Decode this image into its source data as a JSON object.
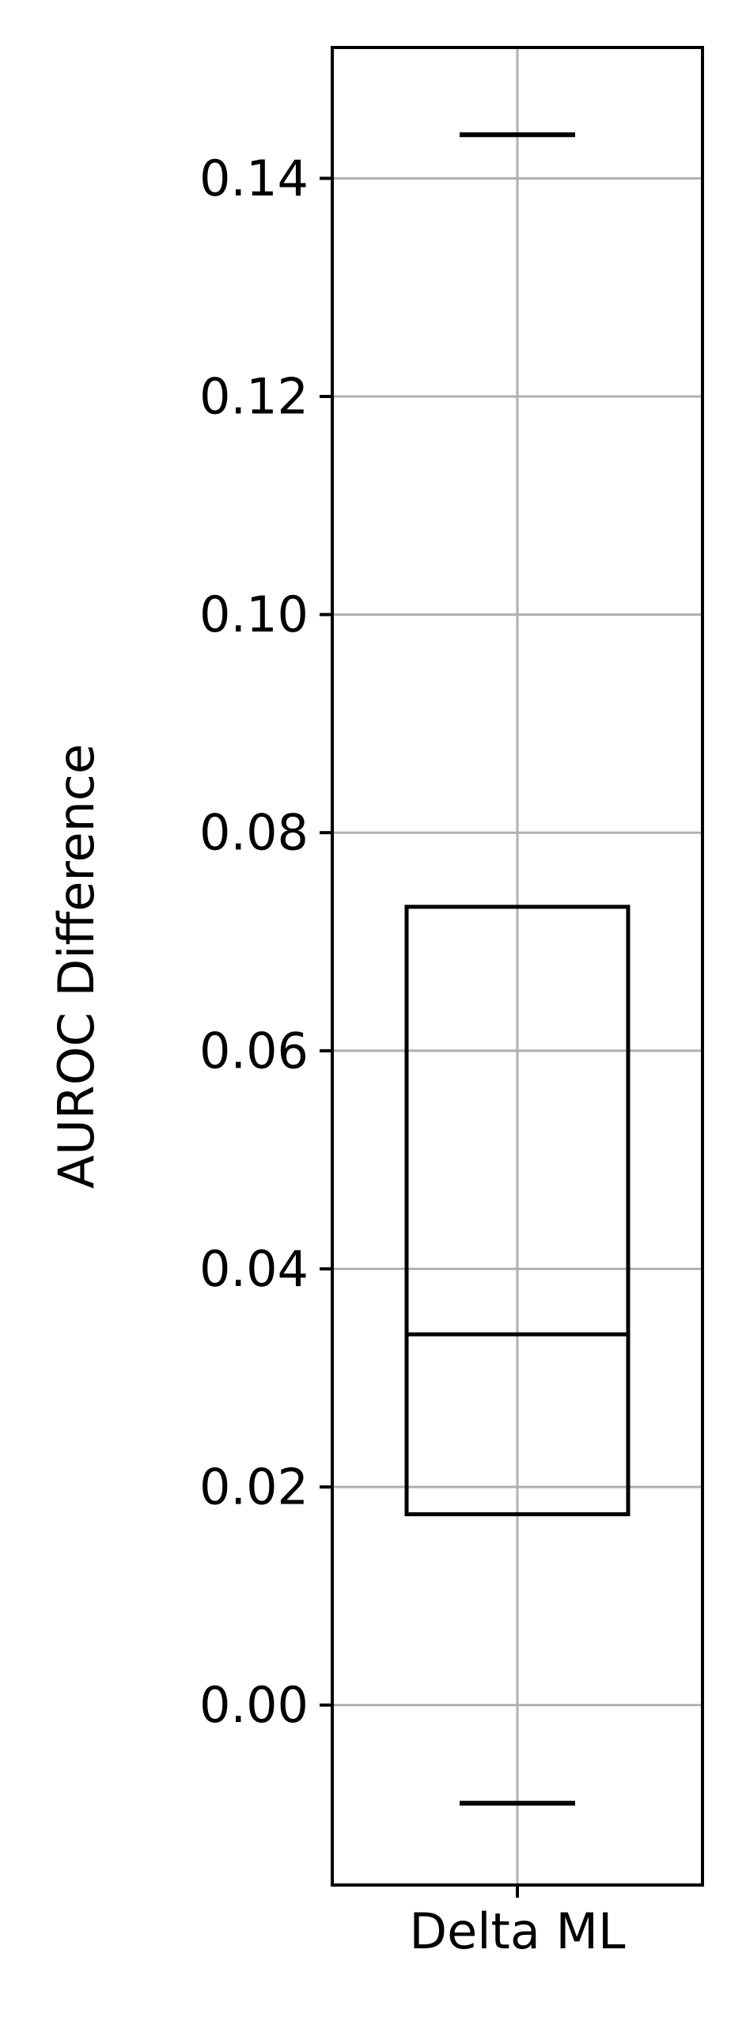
{
  "chart_data": {
    "type": "box",
    "categories": [
      "Delta ML"
    ],
    "ylabel": "AUROC Difference",
    "xlabel": "",
    "ylim": [
      -0.0165,
      0.152
    ],
    "yticks": [
      "0.00",
      "0.02",
      "0.04",
      "0.06",
      "0.08",
      "0.10",
      "0.12",
      "0.14"
    ],
    "grid": true,
    "boxes": [
      {
        "category": "Delta ML",
        "whisker_low": -0.009,
        "q1": 0.0175,
        "median": 0.034,
        "q3": 0.0732,
        "whisker_high": 0.144
      }
    ],
    "colors": {
      "box": "#000000",
      "grid": "#b0b0b0",
      "frame": "#000000"
    }
  }
}
